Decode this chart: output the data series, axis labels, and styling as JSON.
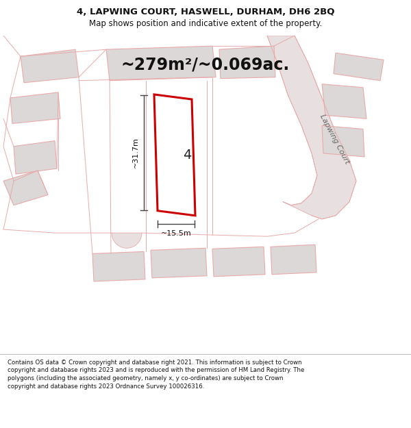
{
  "title_line1": "4, LAPWING COURT, HASWELL, DURHAM, DH6 2BQ",
  "title_line2": "Map shows position and indicative extent of the property.",
  "area_text": "~279m²/~0.069ac.",
  "width_label": "~15.5m",
  "height_label": "~31.7m",
  "plot_number": "4",
  "street_label": "Lapwing Court",
  "footer_text": "Contains OS data © Crown copyright and database right 2021. This information is subject to Crown copyright and database rights 2023 and is reproduced with the permission of HM Land Registry. The polygons (including the associated geometry, namely x, y co-ordinates) are subject to Crown copyright and database rights 2023 Ordnance Survey 100026316.",
  "bg_color": "#f2eeee",
  "map_bg": "#ffffff",
  "plot_fill": "#ffffff",
  "plot_edge": "#cc0000",
  "neighbor_fill": "#ddd8d8",
  "neighbor_edge": "#e8aaaa",
  "road_fill": "#e8e0e0",
  "text_color": "#111111",
  "dim_color": "#444444",
  "title_fontsize": 9.5,
  "subtitle_fontsize": 8.5,
  "area_fontsize": 17,
  "label_fontsize": 8,
  "plot_num_fontsize": 14,
  "street_fontsize": 8,
  "footer_fontsize": 6.2
}
